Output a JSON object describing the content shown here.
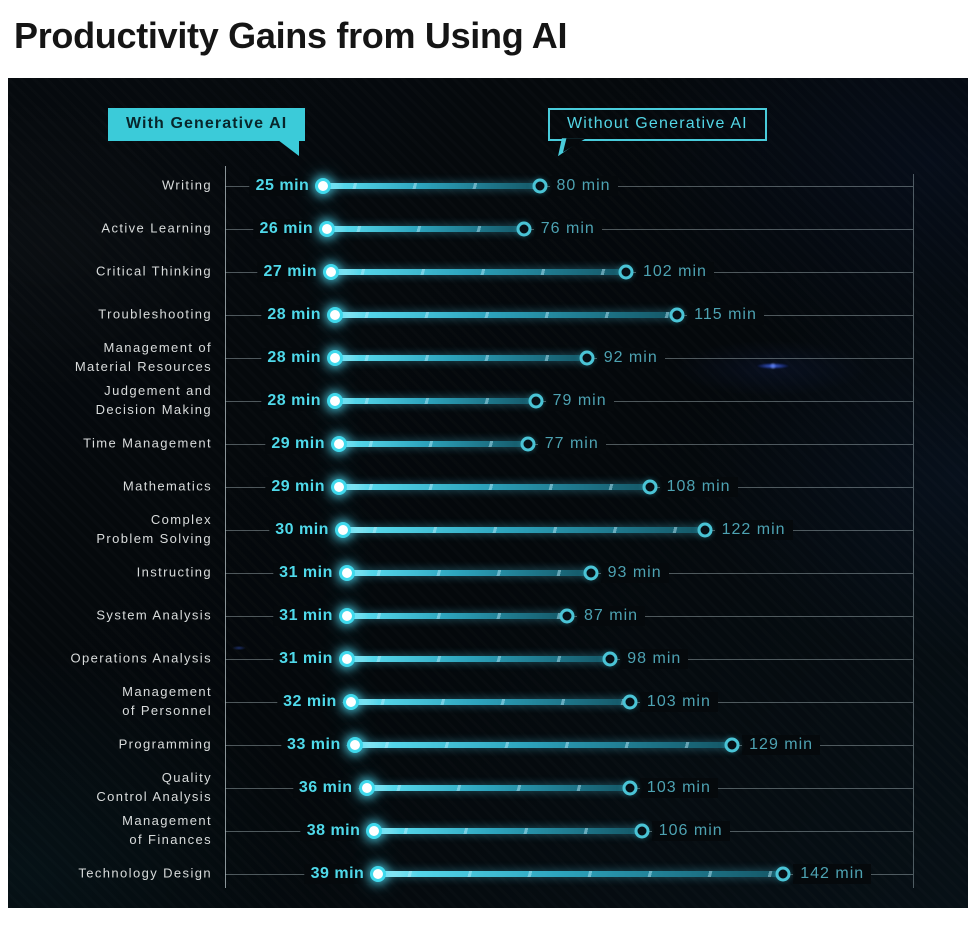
{
  "page": {
    "title": "Productivity Gains from Using AI"
  },
  "legend": {
    "with_label": "With Generative AI",
    "without_label": "Without Generative AI"
  },
  "chart_data": {
    "type": "bar",
    "variant": "dumbbell",
    "title": "Productivity Gains from Using AI",
    "unit": "min",
    "axis": {
      "min": 0,
      "max": 175,
      "gridlines": false
    },
    "legend_position": "top",
    "categories": [
      "Writing",
      "Active Learning",
      "Critical Thinking",
      "Troubleshooting",
      "Management of\nMaterial Resources",
      "Judgement and\nDecision Making",
      "Time Management",
      "Mathematics",
      "Complex\nProblem Solving",
      "Instructing",
      "System Analysis",
      "Operations Analysis",
      "Management\nof Personnel",
      "Programming",
      "Quality\nControl Analysis",
      "Management\nof Finances",
      "Technology Design"
    ],
    "series": [
      {
        "name": "With Generative AI",
        "values": [
          25,
          26,
          27,
          28,
          28,
          28,
          29,
          29,
          30,
          31,
          31,
          31,
          32,
          33,
          36,
          38,
          39
        ]
      },
      {
        "name": "Without Generative AI",
        "values": [
          80,
          76,
          102,
          115,
          92,
          79,
          77,
          108,
          122,
          93,
          87,
          98,
          103,
          129,
          103,
          106,
          142
        ]
      }
    ]
  },
  "colors": {
    "accent_cyan": "#4fd9ea",
    "legend_fill": "#3bcbd9",
    "legend_dark_text": "#08262b",
    "without_value_text": "#4da2b2",
    "category_text": "#d9dcdc",
    "grid_line": "#76878c",
    "panel_bg": "#05090c",
    "with_dot_core": "#ffffff",
    "bar_gradient_start": "#a8f0fa",
    "bar_gradient_end": "#145665"
  }
}
